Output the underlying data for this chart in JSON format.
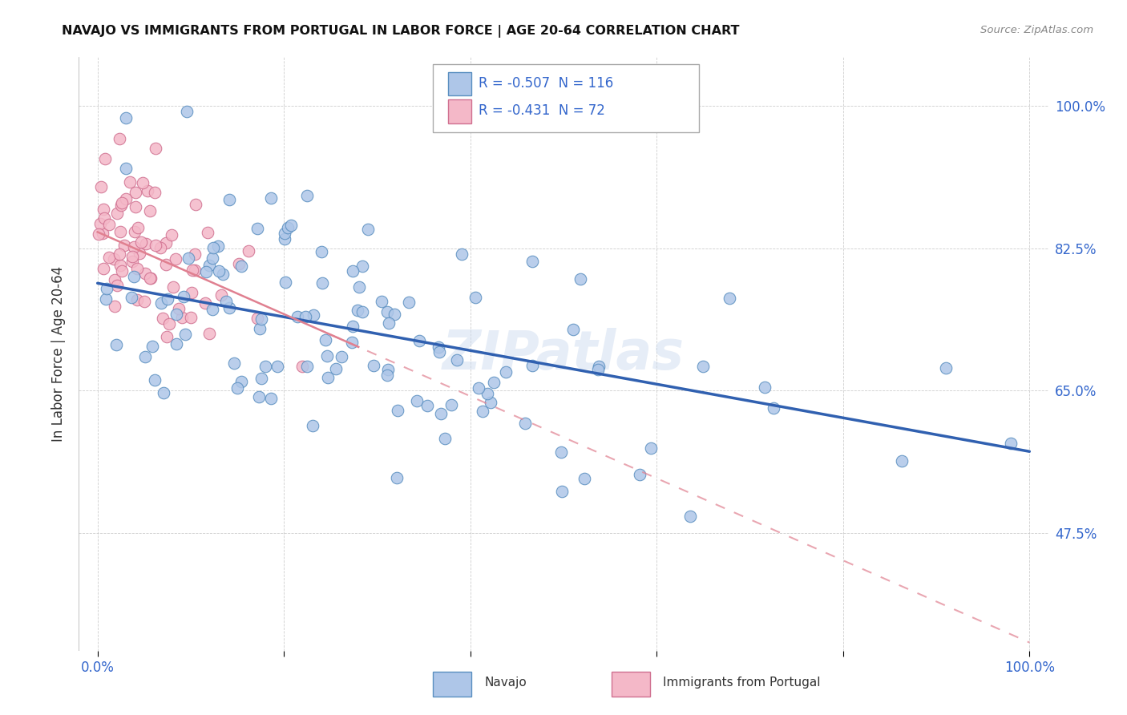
{
  "title": "NAVAJO VS IMMIGRANTS FROM PORTUGAL IN LABOR FORCE | AGE 20-64 CORRELATION CHART",
  "source": "Source: ZipAtlas.com",
  "ylabel": "In Labor Force | Age 20-64",
  "xlim": [
    -0.02,
    1.02
  ],
  "ylim": [
    0.33,
    1.06
  ],
  "ytick_labels": [
    "47.5%",
    "65.0%",
    "82.5%",
    "100.0%"
  ],
  "ytick_positions": [
    0.475,
    0.65,
    0.825,
    1.0
  ],
  "navajo_R": "-0.507",
  "navajo_N": "116",
  "portugal_R": "-0.431",
  "portugal_N": "72",
  "navajo_color": "#aec6e8",
  "navajo_edge_color": "#5a8fc0",
  "portugal_color": "#f4b8c8",
  "portugal_edge_color": "#d07090",
  "navajo_line_color": "#3060b0",
  "portugal_line_color": "#e08090",
  "watermark": "ZIPatlas",
  "background_color": "#ffffff",
  "legend_color": "#3366cc",
  "nav_line_x0": 0.0,
  "nav_line_y0": 0.782,
  "nav_line_x1": 1.0,
  "nav_line_y1": 0.575,
  "port_line_x0": 0.0,
  "port_line_y0": 0.845,
  "port_line_x1": 1.0,
  "port_line_y1": 0.34
}
